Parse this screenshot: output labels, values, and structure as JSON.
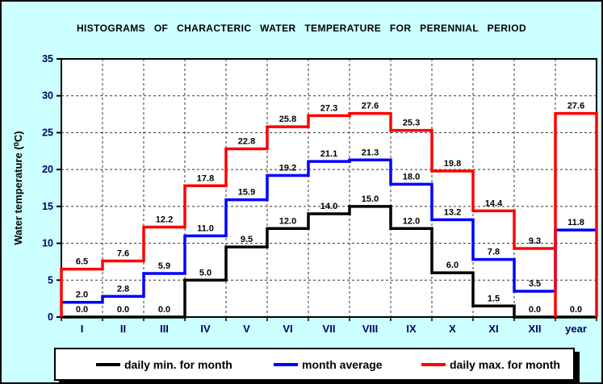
{
  "chart": {
    "title": "HISTOGRAMS OF CHARACTERIC WATER TEMPERATURE FOR PERENNIAL PERIOD",
    "ylabel": "Water temperature (⁰C)"
  },
  "chart_data": {
    "type": "line",
    "subtype": "step-histogram",
    "title": "HISTOGRAMS OF CHARACTERIC WATER TEMPERATURE FOR PERENNIAL PERIOD",
    "ylabel": "Water temperature (⁰C)",
    "xlabel": "",
    "categories": [
      "I",
      "II",
      "III",
      "IV",
      "V",
      "VI",
      "VII",
      "VIII",
      "IX",
      "X",
      "XI",
      "XII",
      "year"
    ],
    "series": [
      {
        "name": "daily min. for month",
        "color": "#000000",
        "values": [
          0.0,
          0.0,
          0.0,
          5.0,
          9.5,
          12.0,
          14.0,
          15.0,
          12.0,
          6.0,
          1.5,
          0.0,
          0.0
        ]
      },
      {
        "name": "month average",
        "color": "#0000ff",
        "values": [
          2.0,
          2.8,
          5.9,
          11.0,
          15.9,
          19.2,
          21.1,
          21.3,
          18.0,
          13.2,
          7.8,
          3.5,
          11.8
        ]
      },
      {
        "name": "daily max. for month",
        "color": "#ff0000",
        "values": [
          6.5,
          7.6,
          12.2,
          17.8,
          22.8,
          25.8,
          27.3,
          27.6,
          25.3,
          19.8,
          14.4,
          9.3,
          27.6
        ]
      }
    ],
    "ylim": [
      0,
      35
    ],
    "ytick_step": 5,
    "grid": "dashed",
    "legend_position": "bottom",
    "data_labels": true
  },
  "colors": {
    "background": "#ccffff",
    "plot_background": "#ffffff",
    "tick_label": "#000066",
    "grid_line": "#333333",
    "data_label": "#000000"
  }
}
